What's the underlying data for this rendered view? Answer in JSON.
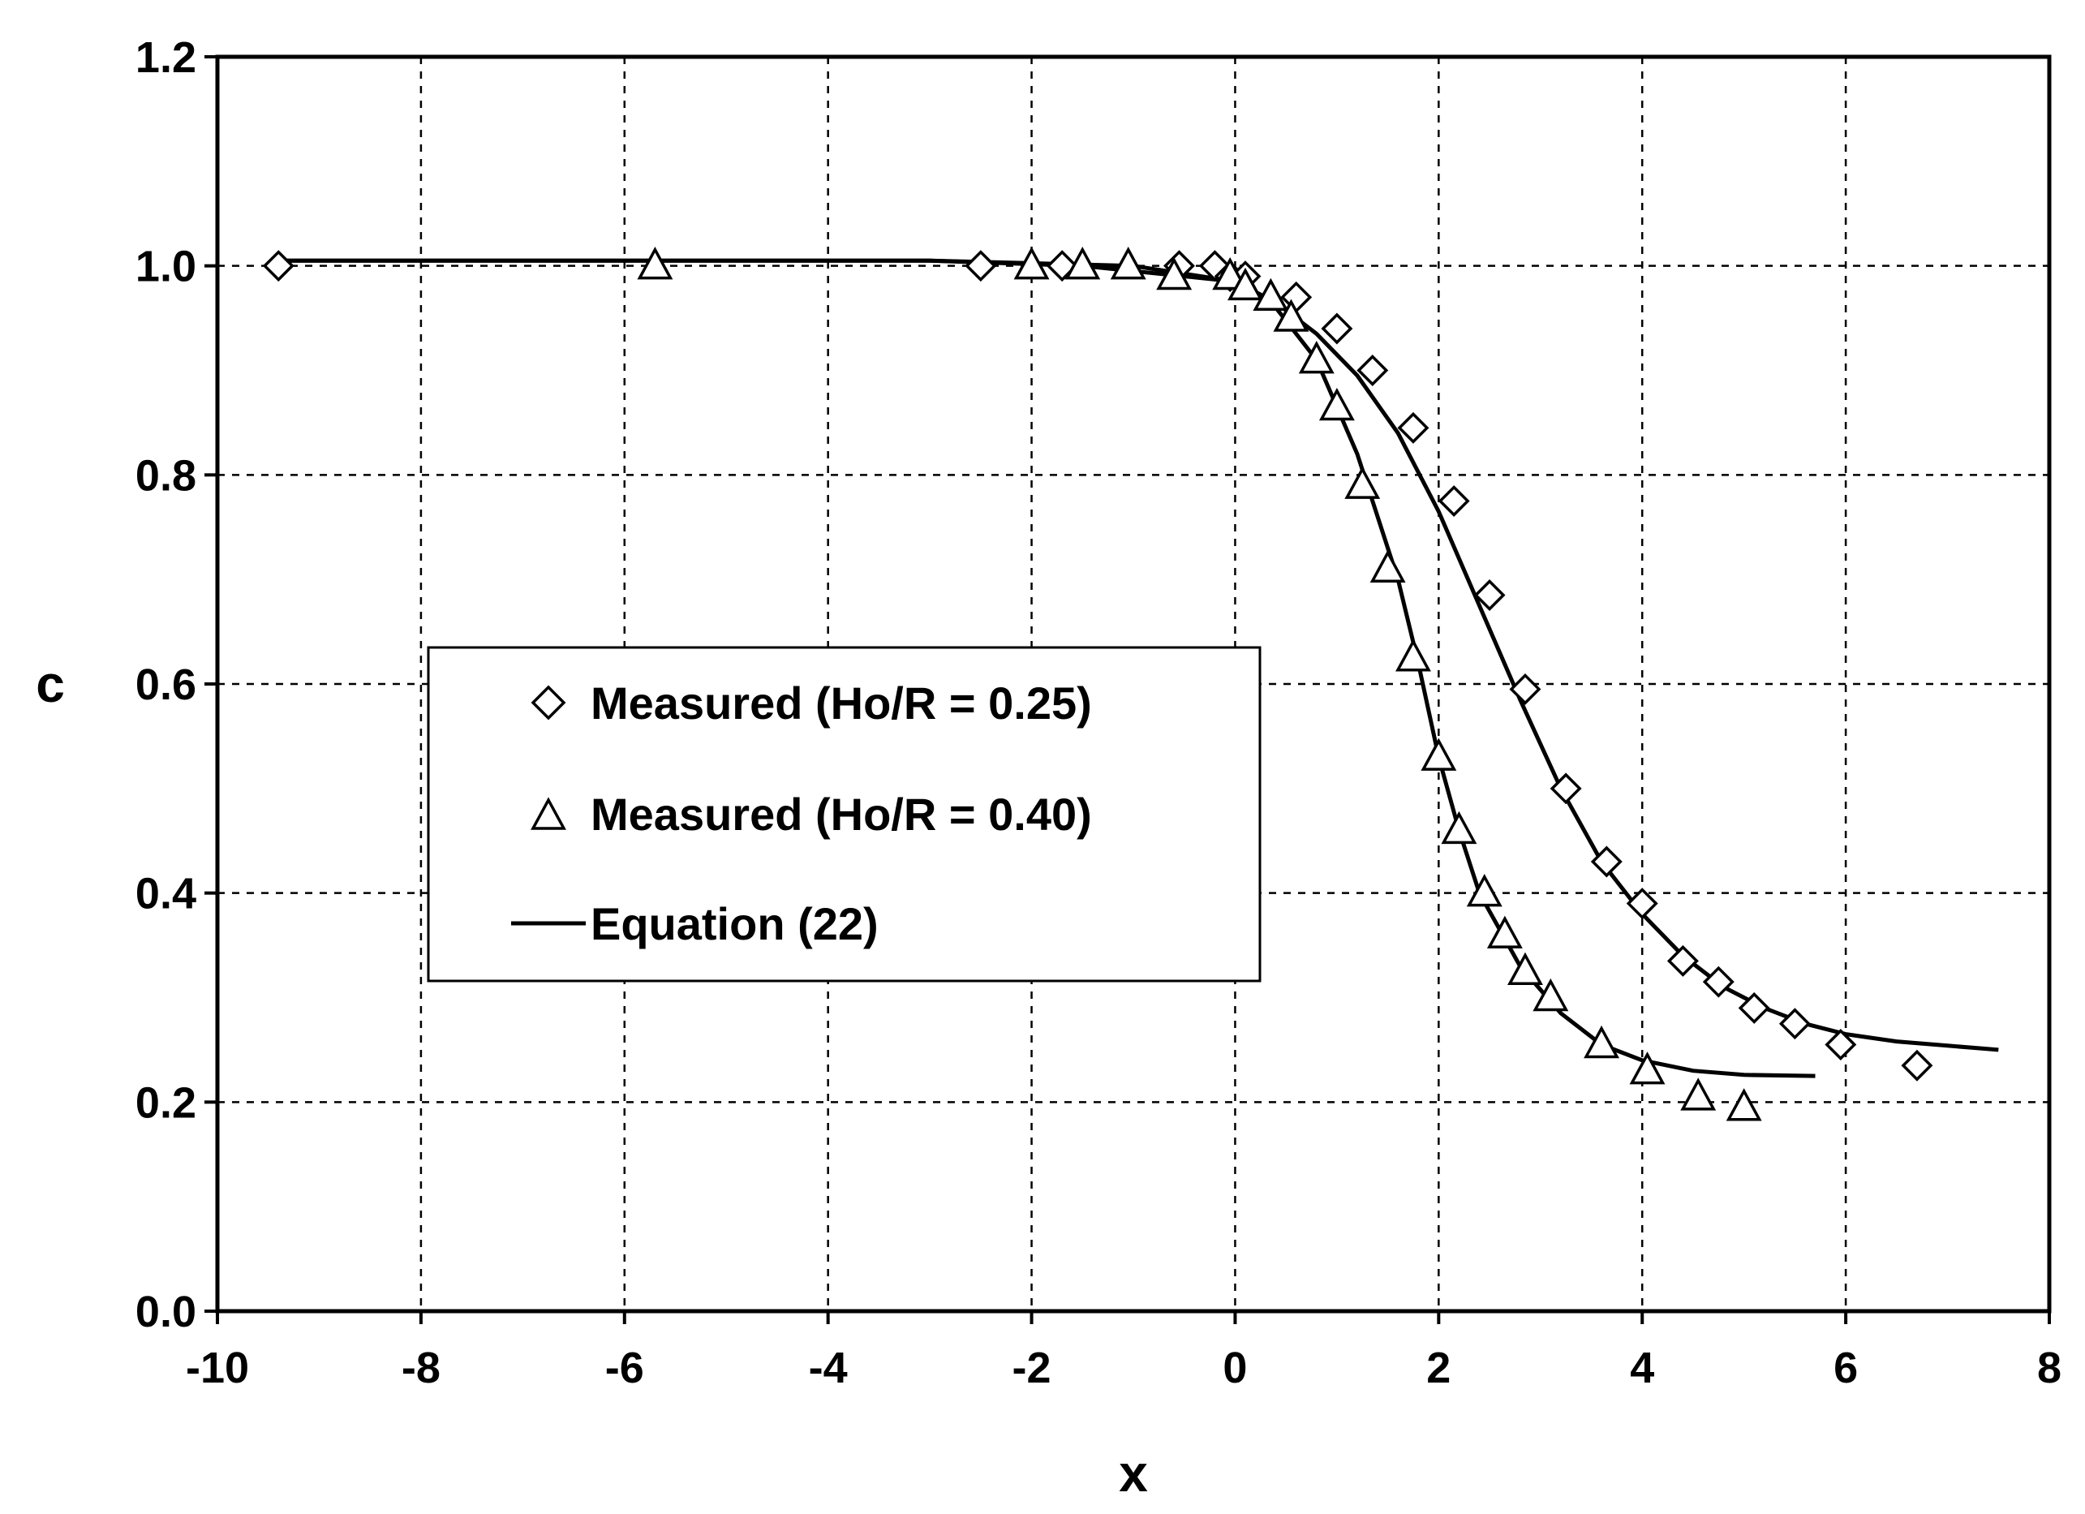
{
  "chart_data": {
    "type": "scatter",
    "title": "",
    "xlabel": "x",
    "ylabel": "c",
    "xlim": [
      -10,
      8
    ],
    "ylim": [
      0.0,
      1.2
    ],
    "x_ticks": [
      "-10",
      "-8",
      "-6",
      "-4",
      "-2",
      "0",
      "2",
      "4",
      "6",
      "8"
    ],
    "y_ticks": [
      "0.0",
      "0.2",
      "0.4",
      "0.6",
      "0.8",
      "1.0",
      "1.2"
    ],
    "grid": true,
    "legend_placement": "center-left",
    "series": [
      {
        "name": "Measured (Ho/R = 0.25)",
        "marker": "diamond",
        "color": "#000000",
        "x": [
          -9.4,
          -2.5,
          -1.7,
          -0.55,
          -0.2,
          -0.05,
          0.1,
          0.6,
          1.0,
          1.35,
          1.75,
          2.15,
          2.5,
          2.85,
          3.25,
          3.65,
          4.0,
          4.4,
          4.75,
          5.1,
          5.5,
          5.95,
          6.7
        ],
        "y": [
          1.0,
          1.0,
          1.0,
          1.0,
          1.0,
          0.99,
          0.99,
          0.97,
          0.94,
          0.9,
          0.845,
          0.775,
          0.685,
          0.595,
          0.5,
          0.43,
          0.39,
          0.335,
          0.315,
          0.29,
          0.275,
          0.255,
          0.235
        ]
      },
      {
        "name": "Measured (Ho/R = 0.40)",
        "marker": "triangle",
        "color": "#000000",
        "x": [
          -5.7,
          -2.0,
          -1.5,
          -1.05,
          -0.6,
          -0.05,
          0.1,
          0.35,
          0.55,
          0.8,
          1.0,
          1.25,
          1.5,
          1.75,
          2.0,
          2.2,
          2.45,
          2.65,
          2.85,
          3.1,
          3.6,
          4.05,
          4.55,
          5.0
        ],
        "y": [
          1.0,
          1.0,
          1.0,
          1.0,
          0.99,
          0.99,
          0.98,
          0.97,
          0.95,
          0.91,
          0.865,
          0.79,
          0.71,
          0.625,
          0.53,
          0.46,
          0.4,
          0.36,
          0.325,
          0.3,
          0.255,
          0.23,
          0.205,
          0.195
        ]
      },
      {
        "name": "Equation (22)",
        "marker": "line",
        "color": "#000000",
        "curves": [
          {
            "x": [
              -9.4,
              -6,
              -3,
              -1.5,
              -0.5,
              0,
              0.4,
              0.8,
              1.2,
              1.6,
              2.0,
              2.4,
              2.8,
              3.2,
              3.6,
              4.0,
              4.4,
              4.8,
              5.2,
              5.6,
              6.0,
              6.5,
              7.0,
              7.5
            ],
            "y": [
              1.005,
              1.005,
              1.005,
              1.0,
              0.99,
              0.985,
              0.965,
              0.935,
              0.895,
              0.84,
              0.765,
              0.675,
              0.585,
              0.5,
              0.43,
              0.38,
              0.34,
              0.31,
              0.29,
              0.275,
              0.265,
              0.258,
              0.254,
              0.25
            ]
          },
          {
            "x": [
              -9.4,
              -6,
              -3,
              -1.0,
              0,
              0.4,
              0.8,
              1.2,
              1.6,
              1.8,
              2.0,
              2.2,
              2.4,
              2.8,
              3.2,
              3.6,
              4.0,
              4.5,
              5.0,
              5.7
            ],
            "y": [
              1.005,
              1.005,
              1.005,
              1.0,
              0.985,
              0.96,
              0.91,
              0.82,
              0.7,
              0.62,
              0.53,
              0.46,
              0.4,
              0.33,
              0.285,
              0.255,
              0.24,
              0.23,
              0.226,
              0.225
            ]
          }
        ]
      }
    ]
  }
}
